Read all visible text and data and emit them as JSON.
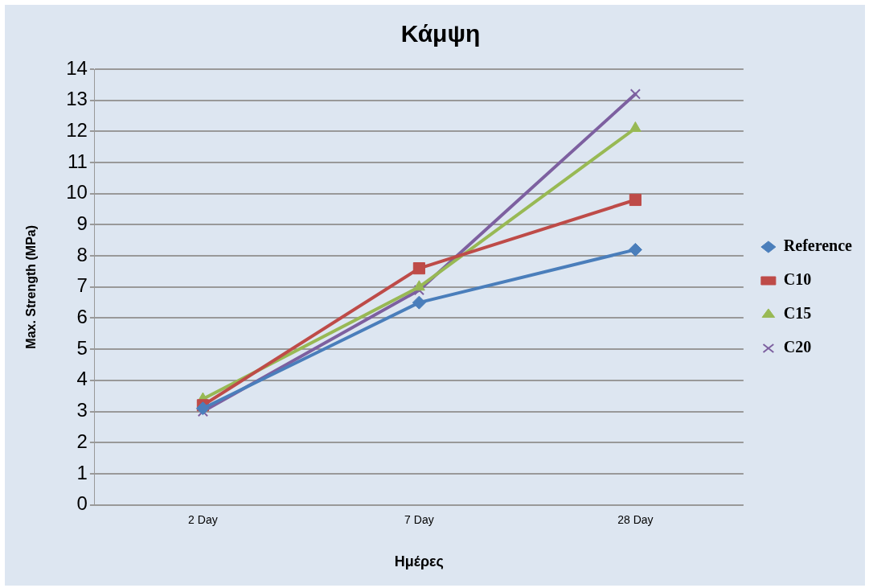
{
  "chart_data": {
    "type": "line",
    "title": "Κάμψη",
    "xlabel": "Ημέρες",
    "ylabel": "Max. Strength (MPa)",
    "categories": [
      "2 Day",
      "7 Day",
      "28 Day"
    ],
    "series": [
      {
        "name": "Reference",
        "color": "#4a7ebb",
        "marker": "diamond",
        "values": [
          3.1,
          6.5,
          8.2
        ]
      },
      {
        "name": "C10",
        "color": "#be4b48",
        "marker": "square",
        "values": [
          3.2,
          7.6,
          9.8
        ]
      },
      {
        "name": "C15",
        "color": "#98b954",
        "marker": "triangle",
        "values": [
          3.4,
          7.0,
          12.1
        ]
      },
      {
        "name": "C20",
        "color": "#7d60a0",
        "marker": "cross",
        "values": [
          3.0,
          6.9,
          13.2
        ]
      }
    ],
    "ylim": [
      0,
      14
    ],
    "yticks": [
      0,
      1,
      2,
      3,
      4,
      5,
      6,
      7,
      8,
      9,
      10,
      11,
      12,
      13,
      14
    ],
    "grid": "y",
    "legend": "right",
    "line_style": "solid"
  }
}
